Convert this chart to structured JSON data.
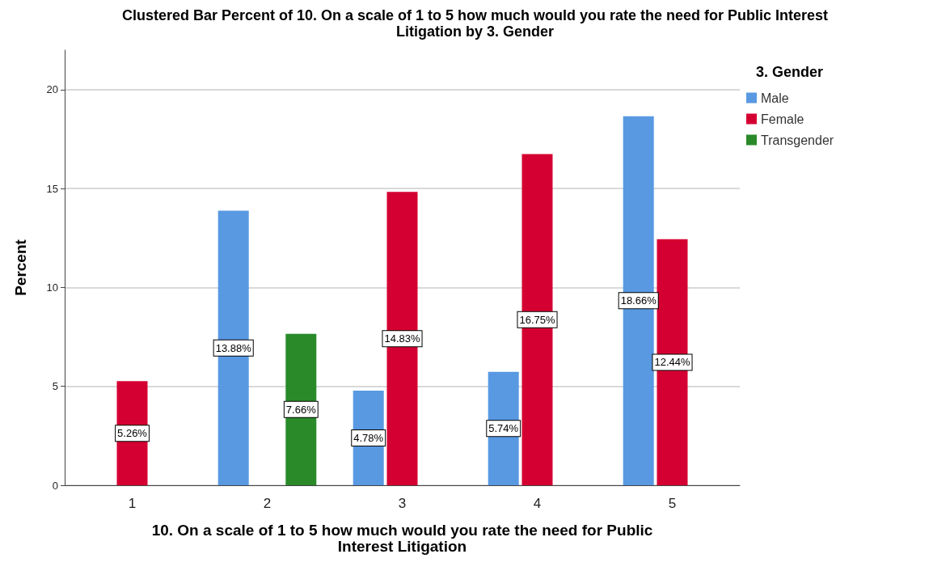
{
  "chart_data": {
    "type": "bar",
    "title": "Clustered Bar Percent of 10. On a scale of 1 to 5 how much would you rate the need for Public Interest\nLitigation by 3. Gender",
    "xlabel": "10. On a scale of 1 to 5 how much would you rate the need for Public\nInterest Litigation",
    "ylabel": "Percent",
    "legend_title": "3. Gender",
    "categories": [
      "1",
      "2",
      "3",
      "4",
      "5"
    ],
    "series": [
      {
        "name": "Male",
        "color": "#5899e2",
        "values": [
          null,
          13.88,
          4.78,
          5.74,
          18.66
        ],
        "value_labels": [
          null,
          "13.88%",
          "4.78%",
          "5.74%",
          "18.66%"
        ]
      },
      {
        "name": "Female",
        "color": "#d50032",
        "values": [
          5.26,
          null,
          14.83,
          16.75,
          12.44
        ],
        "value_labels": [
          "5.26%",
          null,
          "14.83%",
          "16.75%",
          "12.44%"
        ]
      },
      {
        "name": "Transgender",
        "color": "#2a8a2a",
        "values": [
          null,
          7.66,
          null,
          null,
          null
        ],
        "value_labels": [
          null,
          "7.66%",
          null,
          null,
          null
        ]
      }
    ],
    "ylim": [
      0,
      22
    ],
    "yticks": [
      0,
      5,
      10,
      15,
      20
    ],
    "grid": "y",
    "legend": "top right"
  }
}
